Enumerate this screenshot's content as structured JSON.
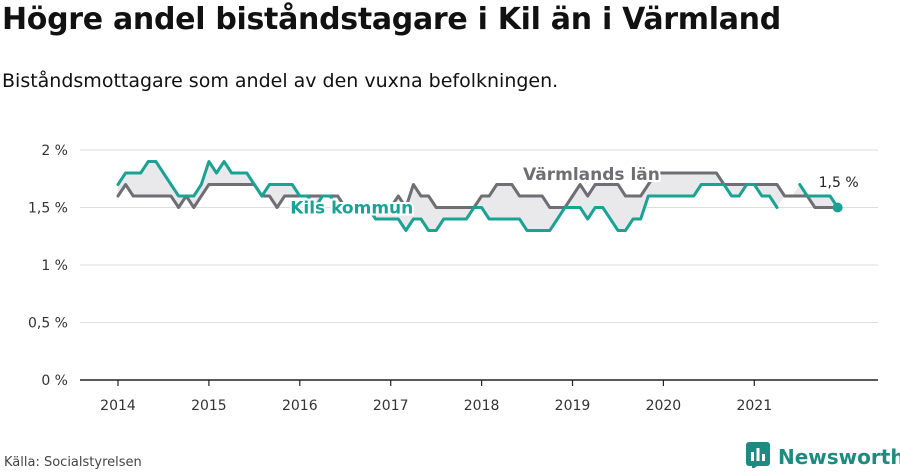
{
  "header": {
    "title": "Högre andel biståndstagare i Kil än i Värmland",
    "subtitle": "Biståndsmottagare som andel av den vuxna befolkningen."
  },
  "footer": {
    "source": "Källa: Socialstyrelsen",
    "brand": "Newsworthy",
    "brand_icon": "bar-chart-logo-icon"
  },
  "colors": {
    "kil": "#1aa394",
    "varmland": "#6e6e73",
    "fill": "#e9e9ec",
    "grid": "#dddddd",
    "axis": "#222222",
    "brand": "#1f8a80"
  },
  "chart_data": {
    "type": "line",
    "x_unit": "monthly, Jan 2014 – Dec 2021",
    "ylim": [
      0,
      2
    ],
    "yticks": [
      0,
      0.5,
      1,
      1.5,
      2
    ],
    "ytick_labels": [
      "0 %",
      "0,5 %",
      "1 %",
      "1,5 %",
      "2 %"
    ],
    "xtick_labels": [
      "2014",
      "2015",
      "2016",
      "2017",
      "2018",
      "2019",
      "2020",
      "2021"
    ],
    "grid": true,
    "series": [
      {
        "name": "Värmlands län",
        "color": "#6e6e73",
        "values": [
          1.6,
          1.7,
          1.6,
          1.6,
          1.6,
          1.6,
          1.6,
          1.6,
          1.5,
          1.6,
          1.5,
          1.6,
          1.7,
          1.7,
          1.7,
          1.7,
          1.7,
          1.7,
          1.7,
          1.6,
          1.6,
          1.5,
          1.6,
          1.6,
          1.6,
          1.6,
          1.6,
          1.6,
          1.6,
          1.6,
          1.5,
          1.5,
          1.5,
          1.5,
          1.5,
          1.5,
          1.5,
          1.6,
          1.5,
          1.7,
          1.6,
          1.6,
          1.5,
          1.5,
          1.5,
          1.5,
          1.5,
          1.5,
          1.6,
          1.6,
          1.7,
          1.7,
          1.7,
          1.6,
          1.6,
          1.6,
          1.6,
          1.5,
          1.5,
          1.5,
          1.6,
          1.7,
          1.6,
          1.7,
          1.7,
          1.7,
          1.7,
          1.6,
          1.6,
          1.6,
          1.7,
          1.8,
          1.8,
          1.8,
          1.8,
          1.8,
          1.8,
          1.8,
          1.8,
          1.8,
          1.7,
          1.7,
          1.7,
          1.7,
          1.7,
          1.7,
          1.7,
          1.7,
          1.6,
          1.6,
          1.6,
          1.6,
          1.5,
          1.5,
          1.5,
          1.5
        ]
      },
      {
        "name": "Kils kommun",
        "color": "#1aa394",
        "values": [
          1.7,
          1.8,
          1.8,
          1.8,
          1.9,
          1.9,
          1.8,
          1.7,
          1.6,
          1.6,
          1.6,
          1.7,
          1.9,
          1.8,
          1.9,
          1.8,
          1.8,
          1.8,
          1.7,
          1.6,
          1.7,
          1.7,
          1.7,
          1.7,
          1.6,
          1.6,
          1.5,
          1.6,
          1.6,
          1.5,
          1.5,
          1.5,
          1.5,
          1.5,
          1.4,
          1.4,
          1.4,
          1.4,
          1.3,
          1.4,
          1.4,
          1.3,
          1.3,
          1.4,
          1.4,
          1.4,
          1.4,
          1.5,
          1.5,
          1.4,
          1.4,
          1.4,
          1.4,
          1.4,
          1.3,
          1.3,
          1.3,
          1.3,
          1.4,
          1.5,
          1.5,
          1.5,
          1.4,
          1.5,
          1.5,
          1.4,
          1.3,
          1.3,
          1.4,
          1.4,
          1.6,
          1.6,
          1.6,
          1.6,
          1.6,
          1.6,
          1.6,
          1.7,
          1.7,
          1.7,
          1.7,
          1.6,
          1.6,
          1.7,
          1.7,
          1.6,
          1.6,
          1.5,
          null,
          null,
          1.7,
          1.6,
          1.6,
          1.6,
          1.6,
          1.5
        ]
      }
    ],
    "annotations": [
      {
        "text": "Värmlands län",
        "series": "Värmlands län"
      },
      {
        "text": "Kils kommun",
        "series": "Kils kommun"
      },
      {
        "text": "1,5 %",
        "series": "Kils kommun",
        "point": "last"
      }
    ]
  }
}
